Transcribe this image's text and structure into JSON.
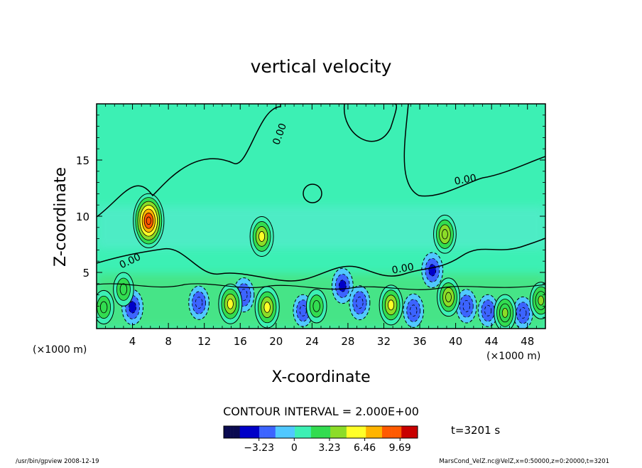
{
  "chart_data": {
    "type": "heatmap",
    "title": "vertical velocity",
    "xlabel": "X-coordinate",
    "ylabel": "Z-coordinate",
    "x_unit_left": "(×1000 m)",
    "x_unit_right": "(×1000 m)",
    "xlim": [
      0,
      50
    ],
    "ylim": [
      0,
      20
    ],
    "xticks": [
      4,
      8,
      12,
      16,
      20,
      24,
      28,
      32,
      36,
      40,
      44,
      48
    ],
    "yticks": [
      5,
      10,
      15
    ],
    "contour_interval_label": "CONTOUR INTERVAL = 2.000E+00",
    "contour_value_labels": [
      "0.00",
      "0.00",
      "0.00",
      "0.00"
    ],
    "colorbar": {
      "ticks": [
        -3.23,
        0,
        3.23,
        6.46,
        9.69
      ],
      "tick_labels": [
        "−3.23",
        "0",
        "3.23",
        "6.46",
        "9.69"
      ],
      "range": [
        -6.46,
        11.3
      ],
      "colors": [
        "#0a0a50",
        "#0000c8",
        "#3c64ff",
        "#50c8ff",
        "#3cf0b4",
        "#32dc50",
        "#8cdc28",
        "#ffff28",
        "#ffb400",
        "#ff5a00",
        "#c80000"
      ]
    },
    "background_color": "#3cf0b4",
    "updraft_cores": [
      {
        "x": 5.8,
        "z": 9.6,
        "w": 9.6
      },
      {
        "x": 18.4,
        "z": 8.2,
        "w": 5.0
      },
      {
        "x": 38.8,
        "z": 8.4,
        "w": 4.5
      },
      {
        "x": 19.0,
        "z": 1.9,
        "w": 5.5
      },
      {
        "x": 14.9,
        "z": 2.2,
        "w": 5.0
      },
      {
        "x": 32.8,
        "z": 2.1,
        "w": 5.0
      },
      {
        "x": 39.2,
        "z": 2.8,
        "w": 4.5
      },
      {
        "x": 45.5,
        "z": 1.4,
        "w": 4.0
      },
      {
        "x": 49.5,
        "z": 2.5,
        "w": 4.0
      },
      {
        "x": 3.0,
        "z": 3.5,
        "w": 3.0
      },
      {
        "x": 0.8,
        "z": 1.9,
        "w": 3.0
      },
      {
        "x": 24.5,
        "z": 2.0,
        "w": 3.0
      }
    ],
    "downdraft_cores": [
      {
        "x": 4.0,
        "z": 1.9,
        "w": -3.5
      },
      {
        "x": 11.4,
        "z": 2.3,
        "w": -3.0
      },
      {
        "x": 16.4,
        "z": 3.0,
        "w": -3.2
      },
      {
        "x": 23.0,
        "z": 1.6,
        "w": -2.5
      },
      {
        "x": 27.4,
        "z": 3.8,
        "w": -3.5
      },
      {
        "x": 29.3,
        "z": 2.3,
        "w": -3.2
      },
      {
        "x": 35.3,
        "z": 1.6,
        "w": -3.0
      },
      {
        "x": 37.4,
        "z": 5.2,
        "w": -3.5
      },
      {
        "x": 41.2,
        "z": 2.0,
        "w": -3.0
      },
      {
        "x": 43.6,
        "z": 1.6,
        "w": -2.5
      },
      {
        "x": 47.5,
        "z": 1.4,
        "w": -2.5
      }
    ]
  },
  "time_label": "t=3201 s",
  "footer_left": "/usr/bin/gpview   2008-12-19",
  "footer_right": "MarsCond_VelZ.nc@VelZ,x=0:50000,z=0:20000,t=3201"
}
